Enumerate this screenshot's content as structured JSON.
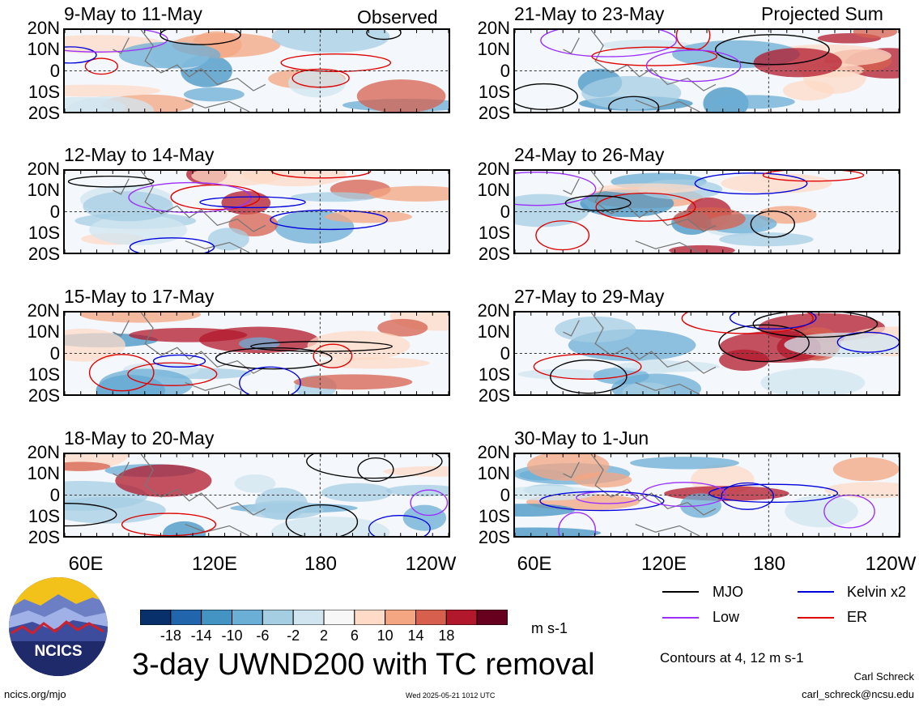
{
  "figure": {
    "title": "3-day UWND200 with TC removal",
    "left_header": "Observed",
    "right_header": "Projected Sum",
    "contour_note": "Contours at 4, 12 m s-1",
    "author": "Carl Schreck",
    "email": "carl_schreck@ncsu.edu",
    "website": "ncics.org/mjo",
    "timestamp": "Wed 2025-05-21 1012 UTC",
    "logo_text": "NCICS"
  },
  "panels": [
    {
      "title": "9-May to 11-May",
      "group": "Observed"
    },
    {
      "title": "12-May to 14-May",
      "group": "Observed"
    },
    {
      "title": "15-May to 17-May",
      "group": "Observed"
    },
    {
      "title": "18-May to 20-May",
      "group": "Observed"
    },
    {
      "title": "21-May to 23-May",
      "group": "Projected Sum"
    },
    {
      "title": "24-May to 26-May",
      "group": "Projected Sum"
    },
    {
      "title": "27-May to 29-May",
      "group": "Projected Sum"
    },
    {
      "title": "30-May to 1-Jun",
      "group": "Projected Sum"
    }
  ],
  "axes": {
    "lat_labels": [
      "20N",
      "10N",
      "0",
      "10S",
      "20S"
    ],
    "lon_labels": [
      "60E",
      "120E",
      "180",
      "120W"
    ]
  },
  "colorbar": {
    "unit": "m s-1",
    "ticks": [
      "-18",
      "-14",
      "-10",
      "-6",
      "-2",
      "2",
      "6",
      "10",
      "14",
      "18"
    ],
    "colors": [
      "#08306b",
      "#2166ac",
      "#4393c3",
      "#6baed6",
      "#a6cee3",
      "#d1e5f0",
      "#f7f7f7",
      "#fddbc7",
      "#f4a582",
      "#d6604d",
      "#b2182b",
      "#67001f"
    ]
  },
  "legend": [
    {
      "label": "MJO",
      "color": "#000000"
    },
    {
      "label": "Kelvin x2",
      "color": "#0000dd"
    },
    {
      "label": "Low",
      "color": "#9b30ff"
    },
    {
      "label": "ER",
      "color": "#e00000"
    }
  ]
}
